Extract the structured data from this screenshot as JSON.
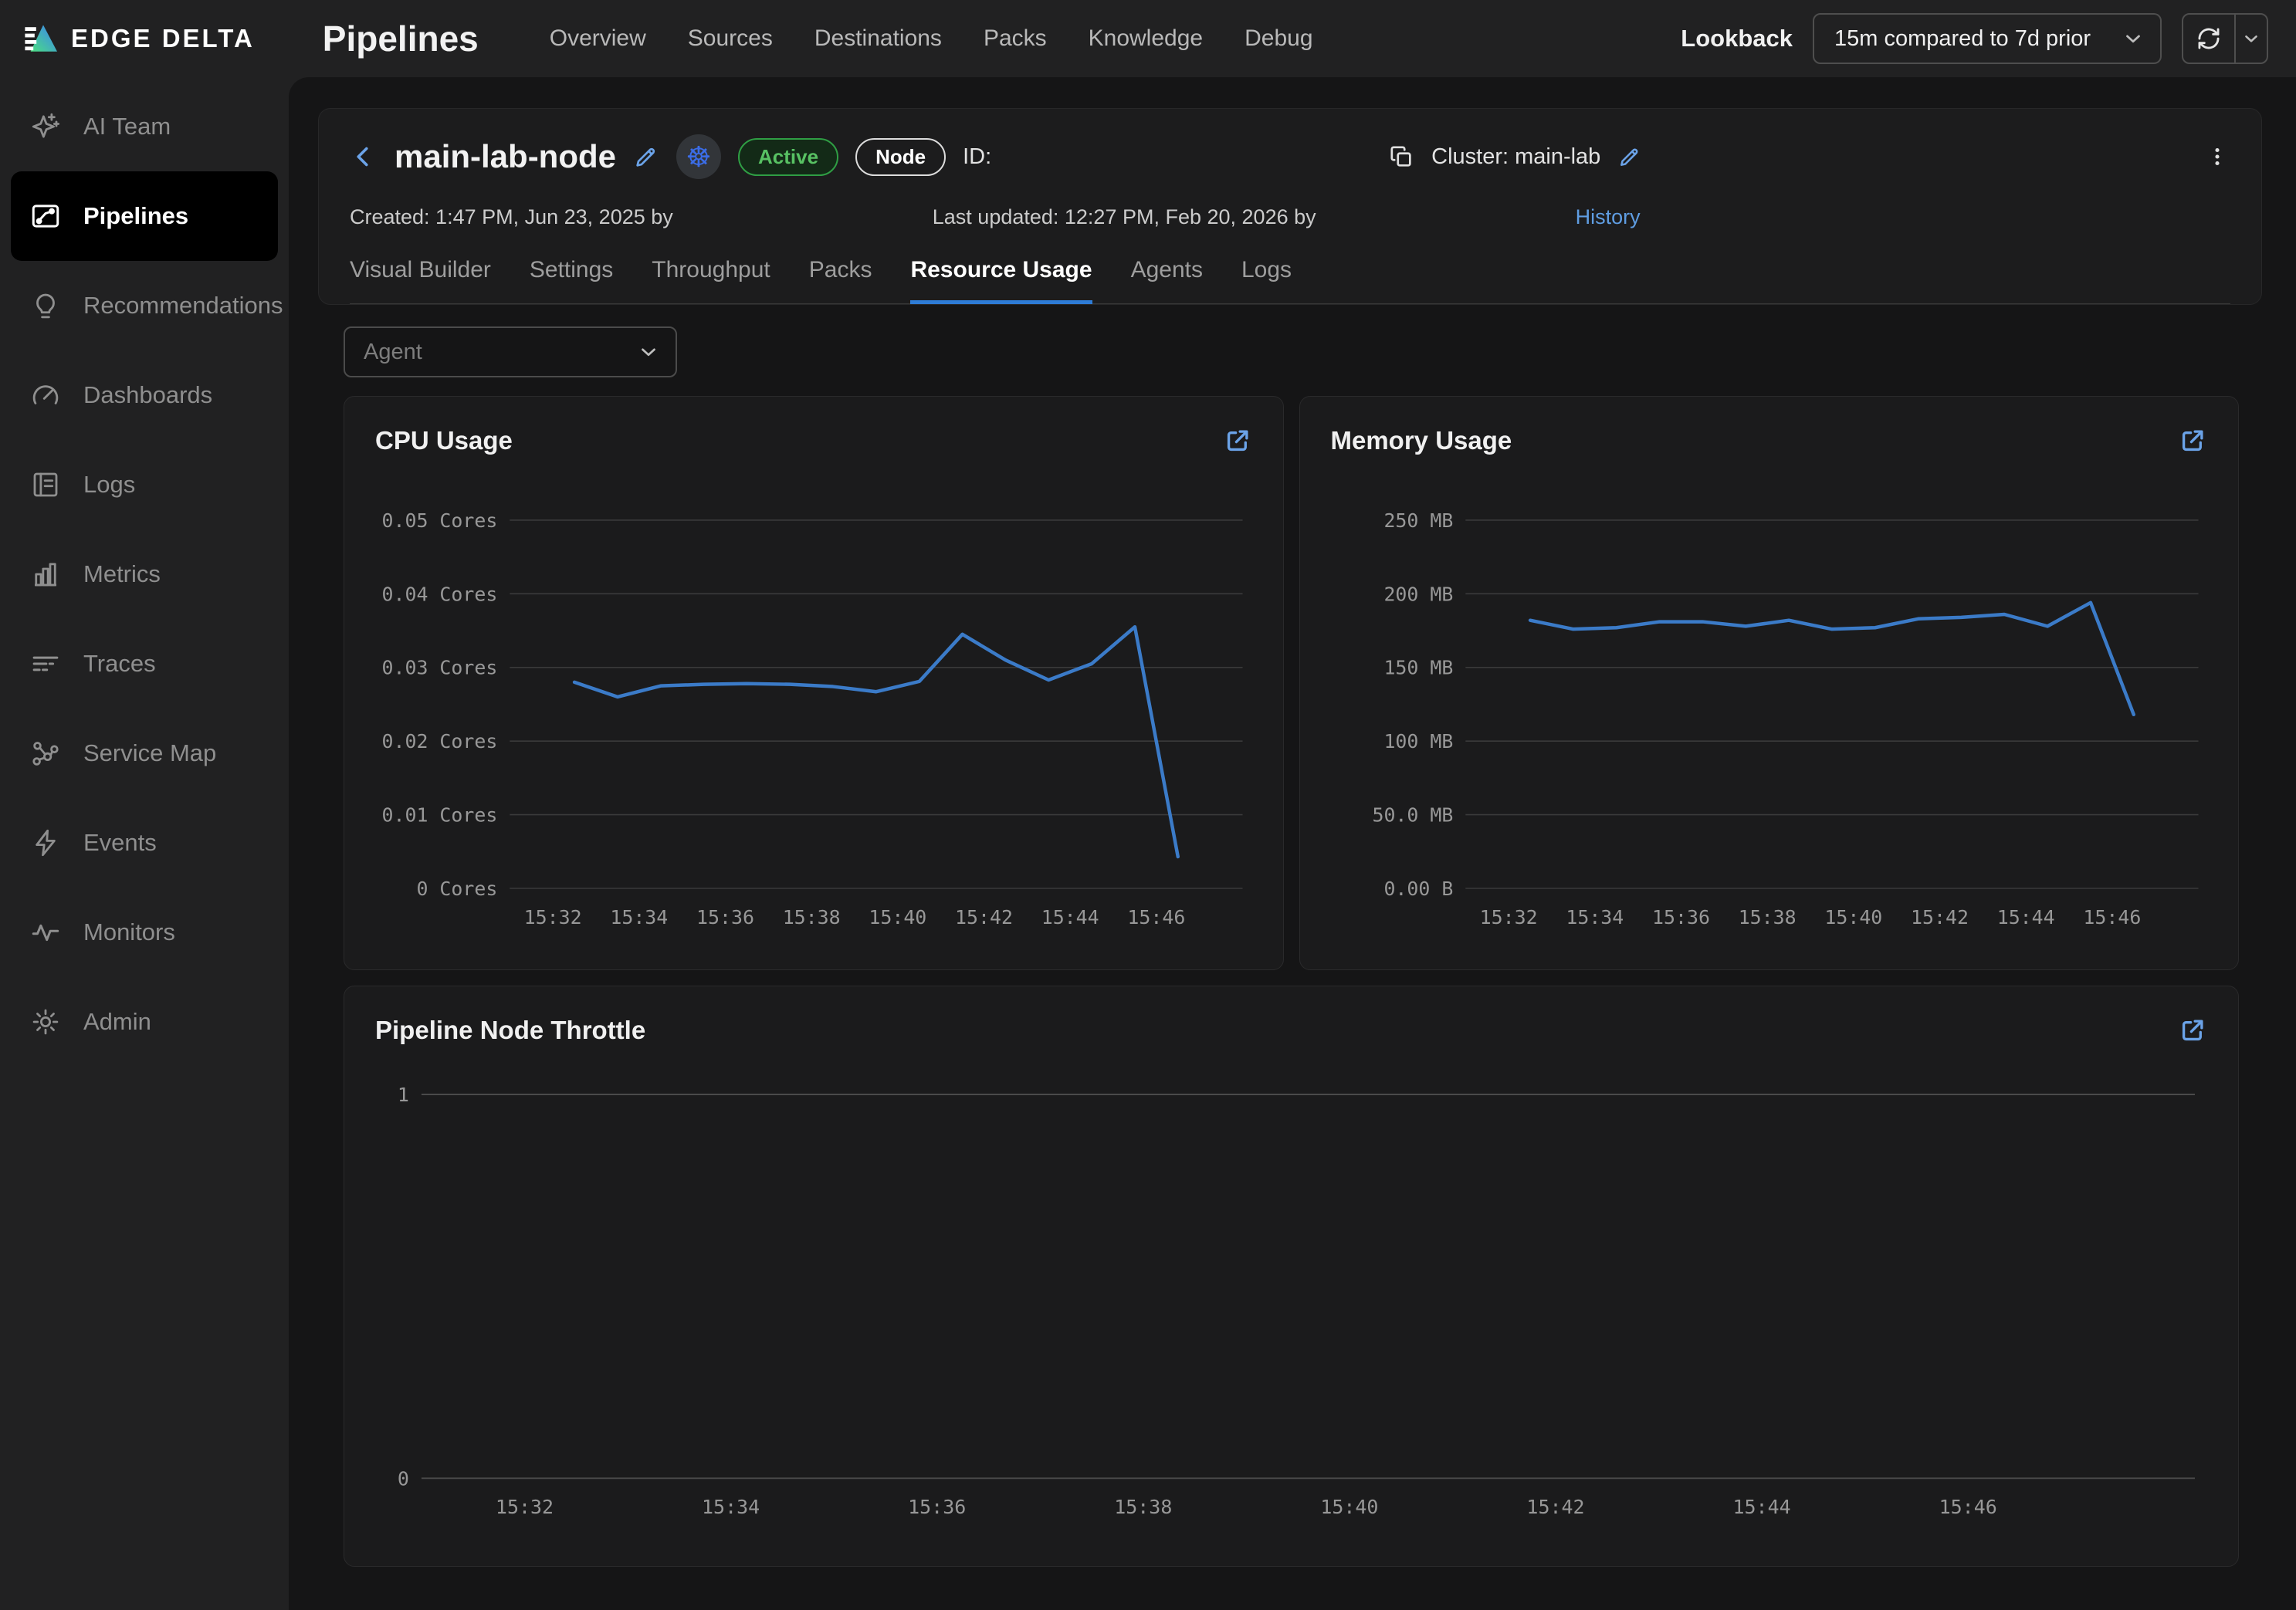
{
  "topbar": {
    "logo_text": "EDGE DELTA",
    "page_title": "Pipelines",
    "nav": [
      "Overview",
      "Sources",
      "Destinations",
      "Packs",
      "Knowledge",
      "Debug"
    ],
    "lookback_label": "Lookback",
    "lookback_value": "15m compared to 7d prior"
  },
  "sidebar": {
    "items": [
      {
        "label": "AI Team",
        "icon": "ai-sparkle-icon",
        "active": false
      },
      {
        "label": "Pipelines",
        "icon": "pipelines-icon",
        "active": true
      },
      {
        "label": "Recommendations",
        "icon": "lightbulb-icon",
        "active": false
      },
      {
        "label": "Dashboards",
        "icon": "gauge-icon",
        "active": false
      },
      {
        "label": "Logs",
        "icon": "logs-icon",
        "active": false
      },
      {
        "label": "Metrics",
        "icon": "bar-chart-icon",
        "active": false
      },
      {
        "label": "Traces",
        "icon": "traces-icon",
        "active": false
      },
      {
        "label": "Service Map",
        "icon": "service-map-icon",
        "active": false
      },
      {
        "label": "Events",
        "icon": "lightning-icon",
        "active": false
      },
      {
        "label": "Monitors",
        "icon": "waveform-icon",
        "active": false
      },
      {
        "label": "Admin",
        "icon": "gear-icon",
        "active": false
      }
    ]
  },
  "detail": {
    "title": "main-lab-node",
    "status_badge": "Active",
    "type_badge": "Node",
    "id_label": "ID:",
    "cluster_label": "Cluster: main-lab",
    "created": "Created: 1:47 PM, Jun 23, 2025 by",
    "last_updated": "Last updated: 12:27 PM, Feb 20, 2026 by",
    "history_link": "History",
    "tabs": [
      {
        "label": "Visual Builder",
        "active": false
      },
      {
        "label": "Settings",
        "active": false
      },
      {
        "label": "Throughput",
        "active": false
      },
      {
        "label": "Packs",
        "active": false
      },
      {
        "label": "Resource Usage",
        "active": true
      },
      {
        "label": "Agents",
        "active": false
      },
      {
        "label": "Logs",
        "active": false
      }
    ]
  },
  "filters": {
    "agent_placeholder": "Agent"
  },
  "colors": {
    "accent_link": "#6ba3e8",
    "tab_underline": "#2e7cd6",
    "series_line": "#3b7bc8",
    "status_green": "#2f9e44"
  },
  "chart_data": [
    {
      "type": "line",
      "title": "CPU Usage",
      "x": [
        "15:32",
        "15:33",
        "15:34",
        "15:35",
        "15:36",
        "15:37",
        "15:38",
        "15:39",
        "15:40",
        "15:41",
        "15:42",
        "15:43",
        "15:44",
        "15:45",
        "15:46"
      ],
      "series": [
        {
          "name": "CPU cores",
          "values": [
            0.028,
            0.026,
            0.0275,
            0.0277,
            0.0278,
            0.0277,
            0.0274,
            0.0267,
            0.0281,
            0.0345,
            0.031,
            0.0283,
            0.0305,
            0.0355,
            0.0043
          ]
        }
      ],
      "ylim": [
        0,
        0.05
      ],
      "yticks": [
        {
          "value": 0.05,
          "label": "0.05 Cores"
        },
        {
          "value": 0.04,
          "label": "0.04 Cores"
        },
        {
          "value": 0.03,
          "label": "0.03 Cores"
        },
        {
          "value": 0.02,
          "label": "0.02 Cores"
        },
        {
          "value": 0.01,
          "label": "0.01 Cores"
        },
        {
          "value": 0,
          "label": "0 Cores"
        }
      ],
      "xticks": [
        "15:32",
        "15:34",
        "15:36",
        "15:38",
        "15:40",
        "15:42",
        "15:44",
        "15:46"
      ],
      "x_domain": [
        -1,
        16
      ],
      "line_color": "#3b7bc8",
      "grid": true,
      "legend": false
    },
    {
      "type": "line",
      "title": "Memory Usage",
      "x": [
        "15:32",
        "15:33",
        "15:34",
        "15:35",
        "15:36",
        "15:37",
        "15:38",
        "15:39",
        "15:40",
        "15:41",
        "15:42",
        "15:43",
        "15:44",
        "15:45",
        "15:46"
      ],
      "series": [
        {
          "name": "Memory MB",
          "values": [
            182,
            176,
            177,
            181,
            181,
            178,
            182,
            176,
            177,
            183,
            184,
            186,
            178,
            194,
            118
          ]
        }
      ],
      "ylim": [
        0,
        250
      ],
      "yticks": [
        {
          "value": 250,
          "label": "250 MB"
        },
        {
          "value": 200,
          "label": "200 MB"
        },
        {
          "value": 150,
          "label": "150 MB"
        },
        {
          "value": 100,
          "label": "100 MB"
        },
        {
          "value": 50,
          "label": "50.0 MB"
        },
        {
          "value": 0,
          "label": "0.00 B"
        }
      ],
      "xticks": [
        "15:32",
        "15:34",
        "15:36",
        "15:38",
        "15:40",
        "15:42",
        "15:44",
        "15:46"
      ],
      "x_domain": [
        -1,
        16
      ],
      "line_color": "#3b7bc8",
      "grid": true,
      "legend": false
    },
    {
      "type": "line",
      "title": "Pipeline Node Throttle",
      "x": [],
      "series": [
        {
          "name": "throttle",
          "values": []
        }
      ],
      "ylim": [
        0,
        1
      ],
      "yticks": [
        {
          "value": 1,
          "label": "1"
        },
        {
          "value": 0,
          "label": "0"
        }
      ],
      "xticks": [
        "15:32",
        "15:34",
        "15:36",
        "15:38",
        "15:40",
        "15:42",
        "15:44",
        "15:46"
      ],
      "x_domain": [
        -1,
        16.2
      ],
      "line_color": "#3b7bc8",
      "grid": true,
      "legend": false
    }
  ]
}
